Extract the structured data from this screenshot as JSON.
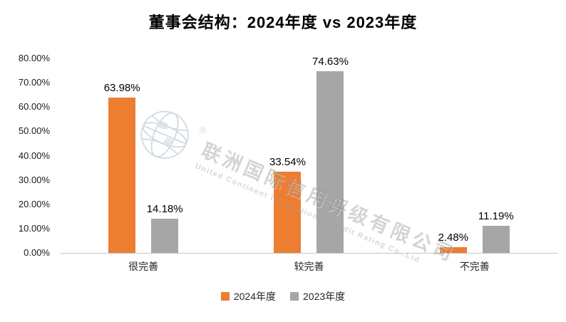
{
  "chart_data": {
    "type": "bar",
    "title": "董事会结构：2024年度 vs 2023年度",
    "categories": [
      "很完善",
      "较完善",
      "不完善"
    ],
    "series": [
      {
        "name": "2024年度",
        "color": "#ED7D31",
        "values": [
          63.98,
          33.54,
          2.48
        ],
        "data_labels": [
          "63.98%",
          "33.54%",
          "2.48%"
        ]
      },
      {
        "name": "2023年度",
        "color": "#A6A6A6",
        "values": [
          14.18,
          74.63,
          11.19
        ],
        "data_labels": [
          "14.18%",
          "74.63%",
          "11.19%"
        ]
      }
    ],
    "ylim": [
      0,
      80
    ],
    "yticks": [
      "0.00%",
      "10.00%",
      "20.00%",
      "30.00%",
      "40.00%",
      "50.00%",
      "60.00%",
      "70.00%",
      "80.00%"
    ],
    "grid": false,
    "legend_position": "bottom"
  },
  "watermark": {
    "name_cn": "联洲国际信用评级有限公司",
    "name_en": "United Continent International Credit Rating Co.,Ltd",
    "registered_mark": "®"
  }
}
